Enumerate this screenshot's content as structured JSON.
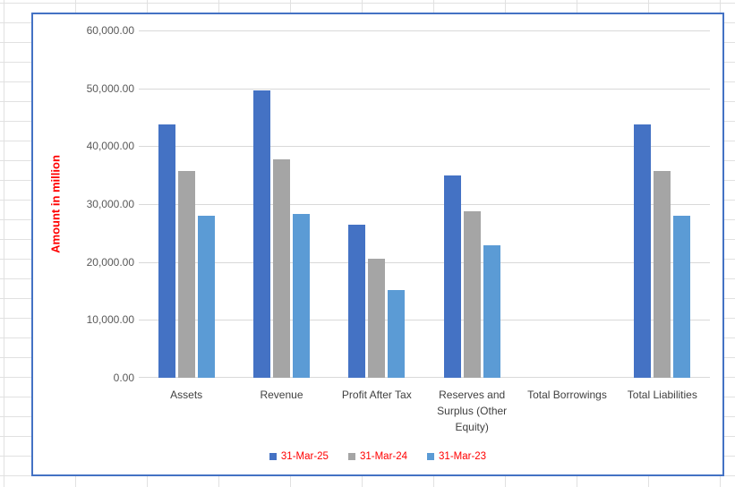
{
  "chart": {
    "frame_border_color": "#4472C4",
    "gridline_color": "#D9D9D9",
    "axis_title_color": "#FF0000",
    "tick_label_color": "#595959",
    "category_label_color": "#404040",
    "legend_text_color": "#FF0000"
  },
  "chart_data": {
    "type": "bar",
    "title": "",
    "xlabel": "",
    "ylabel": "Amount in million",
    "ylim": [
      0,
      60000
    ],
    "ytick_step": 10000,
    "ytick_labels": [
      "0.00",
      "10,000.00",
      "20,000.00",
      "30,000.00",
      "40,000.00",
      "50,000.00",
      "60,000.00"
    ],
    "grid": true,
    "legend_position": "bottom",
    "categories": [
      "Assets",
      "Revenue",
      "Profit After Tax",
      "Reserves and Surplus (Other Equity)",
      "Total Borrowings",
      "Total Liabilities"
    ],
    "series": [
      {
        "name": "31-Mar-25",
        "color": "#4472C4",
        "values": [
          43800,
          49650,
          26400,
          35000,
          0,
          43800
        ]
      },
      {
        "name": "31-Mar-24",
        "color": "#A5A5A5",
        "values": [
          35650,
          37700,
          20500,
          28700,
          0,
          35650
        ]
      },
      {
        "name": "31-Mar-23",
        "color": "#5B9BD5",
        "values": [
          28000,
          28300,
          15100,
          22900,
          0,
          28000
        ]
      }
    ]
  }
}
